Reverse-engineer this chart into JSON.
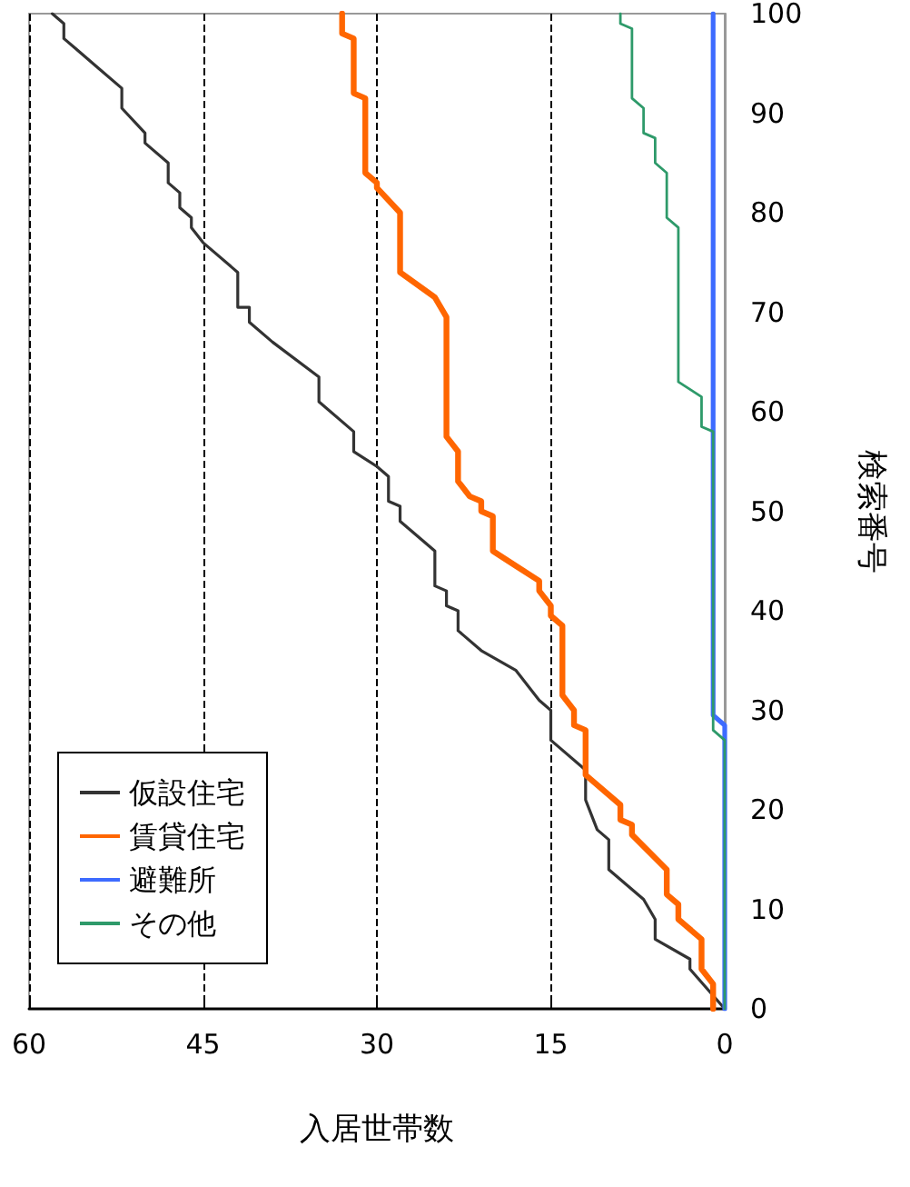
{
  "chart_data": {
    "type": "line",
    "xlabel": "入居世帯数",
    "ylabel": "検索番号",
    "xlim": [
      60,
      0
    ],
    "xticks": [
      60,
      45,
      30,
      15,
      0
    ],
    "ylim": [
      0,
      100
    ],
    "yticks": [
      0,
      10,
      20,
      30,
      40,
      50,
      60,
      70,
      80,
      90,
      100
    ],
    "grid": "x",
    "legend": "bottom left",
    "marker": "none",
    "line_style": "solid",
    "series": [
      {
        "name": "仮設住宅",
        "color": "#333333",
        "x": [
          0,
          3,
          3,
          6,
          6,
          7,
          10,
          10,
          11,
          12,
          12,
          15,
          15,
          16,
          18,
          21,
          23,
          23,
          24,
          24,
          25,
          25,
          28,
          28,
          29,
          29,
          30,
          32,
          32,
          35,
          35,
          39,
          41,
          41,
          42,
          42,
          45,
          46,
          46,
          47,
          47,
          48,
          48,
          50,
          50,
          52,
          52,
          54,
          56,
          57,
          57,
          58
        ],
        "values": [
          0,
          4,
          5,
          7,
          9,
          11,
          14,
          17,
          18,
          21,
          24,
          27,
          30,
          31,
          34,
          36,
          38,
          40,
          40.5,
          42,
          42.5,
          46,
          49,
          50.5,
          51,
          53.5,
          54.5,
          56,
          58,
          61,
          63.5,
          67,
          69,
          70.5,
          70.5,
          74,
          77,
          78.5,
          79.5,
          80.5,
          82,
          83,
          85,
          87,
          88,
          90.5,
          92.5,
          94.5,
          96.5,
          97.5,
          99,
          100
        ]
      },
      {
        "name": "賃貸住宅",
        "color": "#ff6600",
        "x": [
          1,
          1,
          2,
          2,
          4,
          4,
          5,
          5,
          8,
          8,
          9,
          9,
          12,
          12,
          13,
          13,
          14,
          14,
          15,
          15,
          16,
          16,
          18,
          20,
          20,
          21,
          21,
          22,
          23,
          23,
          24,
          24,
          25,
          28,
          28,
          30,
          30,
          31,
          31,
          32,
          32,
          33,
          33
        ],
        "values": [
          0,
          2.5,
          4,
          7,
          9,
          10.5,
          11.5,
          14,
          17.5,
          18.5,
          19,
          20.5,
          23.5,
          28,
          28.5,
          30,
          31.5,
          38.5,
          39.5,
          40.5,
          42,
          43,
          44.5,
          46,
          49.5,
          50,
          51,
          51.5,
          53,
          56,
          57.5,
          69.5,
          71.5,
          74,
          80,
          82.5,
          83,
          84,
          91.5,
          92,
          97.5,
          98,
          100
        ]
      },
      {
        "name": "避難所",
        "color": "#3d6bff",
        "x": [
          0,
          0,
          1,
          1
        ],
        "values": [
          0,
          28.5,
          29.5,
          100
        ]
      },
      {
        "name": "その他",
        "color": "#2e9a6a",
        "x": [
          0,
          0,
          1,
          1,
          2,
          2,
          4,
          4,
          5,
          5,
          6,
          6,
          7,
          7,
          8,
          8,
          9,
          9
        ],
        "values": [
          0,
          27,
          28,
          58,
          58.5,
          61.5,
          63,
          78.5,
          79.5,
          84,
          85,
          87.5,
          88,
          90.5,
          91.5,
          98.5,
          99,
          100
        ]
      }
    ]
  }
}
